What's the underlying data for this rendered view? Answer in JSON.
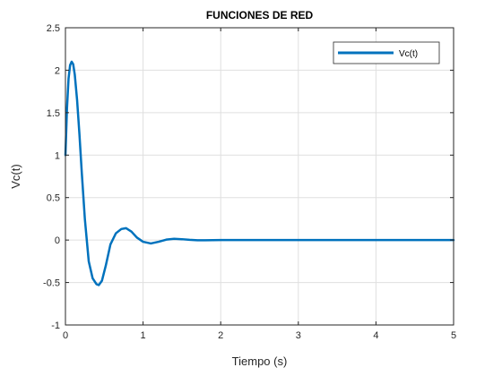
{
  "chart_data": {
    "type": "line",
    "title": "FUNCIONES DE RED",
    "xlabel": "Tiempo (s)",
    "ylabel": "Vc(t)",
    "xlim": [
      0,
      5
    ],
    "ylim": [
      -1,
      2.5
    ],
    "xticks": [
      0,
      1,
      2,
      3,
      4,
      5
    ],
    "xtick_labels": [
      "0",
      "1",
      "2",
      "3",
      "4",
      "5"
    ],
    "yticks": [
      -1,
      -0.5,
      0,
      0.5,
      1,
      1.5,
      2,
      2.5
    ],
    "ytick_labels": [
      "-1",
      "-0.5",
      "0",
      "0.5",
      "1",
      "1.5",
      "2",
      "2.5"
    ],
    "grid": true,
    "legend_position": "top-right",
    "series": [
      {
        "name": "Vc(t)",
        "color": "#0072BD",
        "x": [
          0,
          0.02,
          0.04,
          0.06,
          0.08,
          0.1,
          0.12,
          0.15,
          0.18,
          0.21,
          0.25,
          0.3,
          0.35,
          0.4,
          0.43,
          0.47,
          0.52,
          0.58,
          0.65,
          0.72,
          0.78,
          0.85,
          0.92,
          1.0,
          1.1,
          1.2,
          1.3,
          1.4,
          1.5,
          1.6,
          1.7,
          1.8,
          2.0,
          2.5,
          3.0,
          3.5,
          4.0,
          4.5,
          5.0
        ],
        "y": [
          1.0,
          1.55,
          1.9,
          2.06,
          2.1,
          2.07,
          1.95,
          1.65,
          1.25,
          0.8,
          0.25,
          -0.25,
          -0.45,
          -0.52,
          -0.53,
          -0.48,
          -0.3,
          -0.05,
          0.08,
          0.13,
          0.14,
          0.1,
          0.03,
          -0.02,
          -0.04,
          -0.02,
          0.005,
          0.015,
          0.01,
          0.003,
          -0.002,
          -0.002,
          0.0,
          0.0,
          0.0,
          0.0,
          0.0,
          0.0,
          0.0
        ]
      }
    ]
  }
}
